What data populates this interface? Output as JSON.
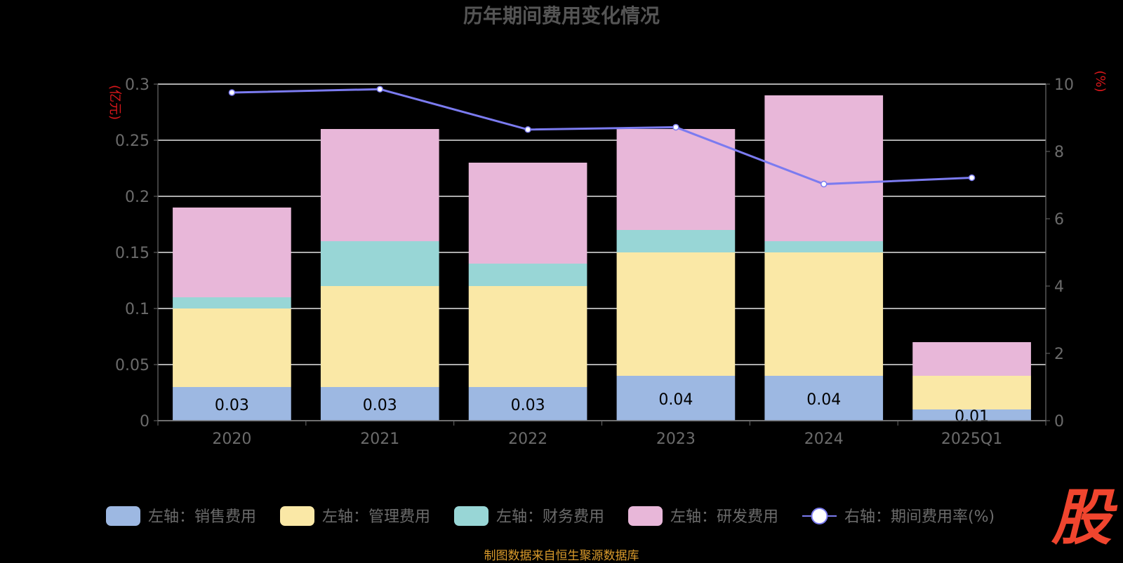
{
  "chart_data": {
    "type": "bar",
    "stacked": true,
    "title": "历年期间费用变化情况",
    "y_left_unit": "(亿元)",
    "y_right_unit": "(%)",
    "categories": [
      "2020",
      "2021",
      "2022",
      "2023",
      "2024",
      "2025Q1"
    ],
    "left_ylim": [
      0,
      0.3
    ],
    "left_yticks": [
      "0",
      "0.05",
      "0.1",
      "0.15",
      "0.2",
      "0.25",
      "0.3"
    ],
    "right_ylim": [
      0,
      10
    ],
    "right_yticks": [
      "0",
      "2",
      "4",
      "6",
      "8",
      "10"
    ],
    "grid": true,
    "legend_position": "bottom",
    "series": [
      {
        "name": "左轴：销售费用",
        "axis": "left",
        "type": "bar",
        "color": "#9db8e2",
        "values": [
          0.03,
          0.03,
          0.03,
          0.04,
          0.04,
          0.01
        ],
        "labels": [
          "0.03",
          "0.03",
          "0.03",
          "0.04",
          "0.04",
          "0.01"
        ]
      },
      {
        "name": "左轴：管理费用",
        "axis": "left",
        "type": "bar",
        "color": "#fae8a6",
        "values": [
          0.07,
          0.09,
          0.09,
          0.11,
          0.11,
          0.03
        ]
      },
      {
        "name": "左轴：财务费用",
        "axis": "left",
        "type": "bar",
        "color": "#98d6d6",
        "values": [
          0.01,
          0.04,
          0.02,
          0.02,
          0.01,
          0.0
        ]
      },
      {
        "name": "左轴：研发费用",
        "axis": "left",
        "type": "bar",
        "color": "#e8b7d9",
        "values": [
          0.08,
          0.1,
          0.09,
          0.09,
          0.13,
          0.03
        ]
      },
      {
        "name": "右轴：期间费用率(%)",
        "axis": "right",
        "type": "line",
        "color": "#7b7bf0",
        "values": [
          9.75,
          9.85,
          8.65,
          8.72,
          7.03,
          7.22
        ]
      }
    ]
  },
  "footer": {
    "source": "制图数据来自恒生聚源数据库",
    "logo_text": "股"
  },
  "colors": {
    "background": "#000000",
    "title": "#555555",
    "axis_text": "#6b6b6b",
    "unit_text": "#d9171b",
    "grid": "#e6e6e6",
    "logo": "#f0452e",
    "source": "#d99a2b"
  }
}
